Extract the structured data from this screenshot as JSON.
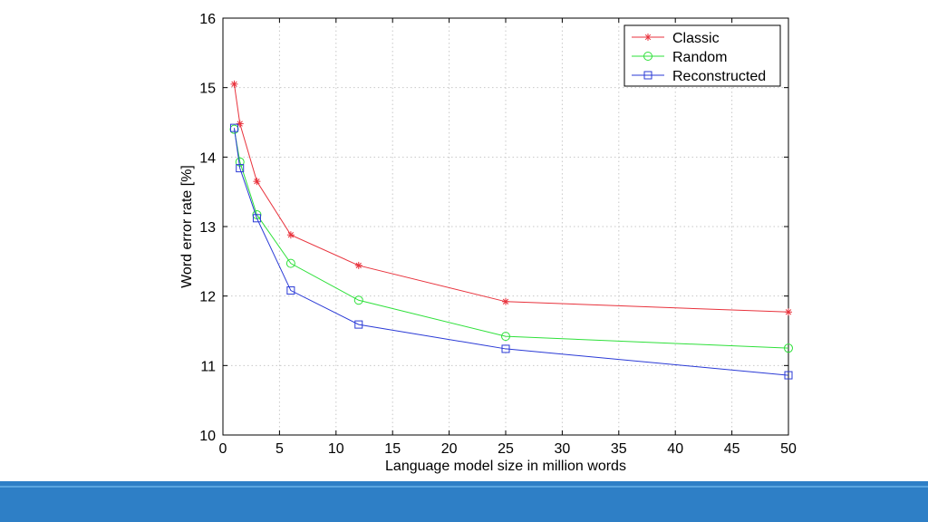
{
  "chart_data": {
    "type": "line",
    "title": "",
    "xlabel": "Language model size in million words",
    "ylabel": "Word error rate [%]",
    "xlim": [
      0,
      50
    ],
    "ylim": [
      10,
      16
    ],
    "xticks": [
      0,
      5,
      10,
      15,
      20,
      25,
      30,
      35,
      40,
      45,
      50
    ],
    "yticks": [
      10,
      11,
      12,
      13,
      14,
      15,
      16
    ],
    "grid": true,
    "legend_position": "top-right",
    "series": [
      {
        "name": "Classic",
        "color": "#e8323c",
        "marker": "star",
        "x": [
          1,
          1.5,
          3,
          6,
          12,
          25,
          50
        ],
        "y": [
          15.05,
          14.48,
          13.65,
          12.88,
          12.44,
          11.92,
          11.77
        ]
      },
      {
        "name": "Random",
        "color": "#2ee03a",
        "marker": "circle",
        "x": [
          1,
          1.5,
          3,
          6,
          12,
          25,
          50
        ],
        "y": [
          14.4,
          13.93,
          13.17,
          12.47,
          11.94,
          11.42,
          11.25
        ]
      },
      {
        "name": "Reconstructed",
        "color": "#2a3ad6",
        "marker": "square",
        "x": [
          1,
          1.5,
          3,
          6,
          12,
          25,
          50
        ],
        "y": [
          14.42,
          13.84,
          13.12,
          12.08,
          11.59,
          11.24,
          10.86
        ]
      }
    ]
  },
  "theme": {
    "footer_color": "#2e7fc6"
  }
}
